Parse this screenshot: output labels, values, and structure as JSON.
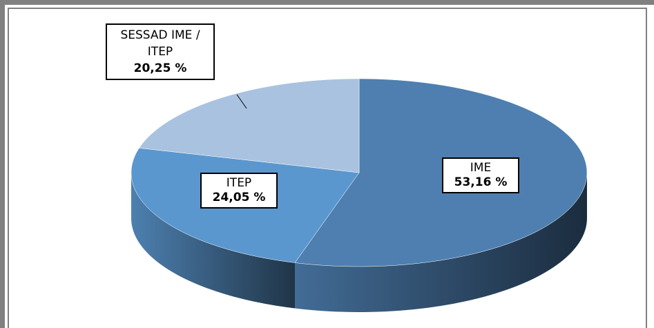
{
  "chart_data": {
    "type": "pie",
    "categories": [
      "IME",
      "ITEP",
      "SESSAD IME / ITEP"
    ],
    "values": [
      53.16,
      24.05,
      20.25
    ],
    "value_labels": [
      "53,16 %",
      "24,05 %",
      "20,25 %"
    ],
    "colors": [
      "#4e7fb0",
      "#5b97cf",
      "#a9c2df"
    ]
  }
}
